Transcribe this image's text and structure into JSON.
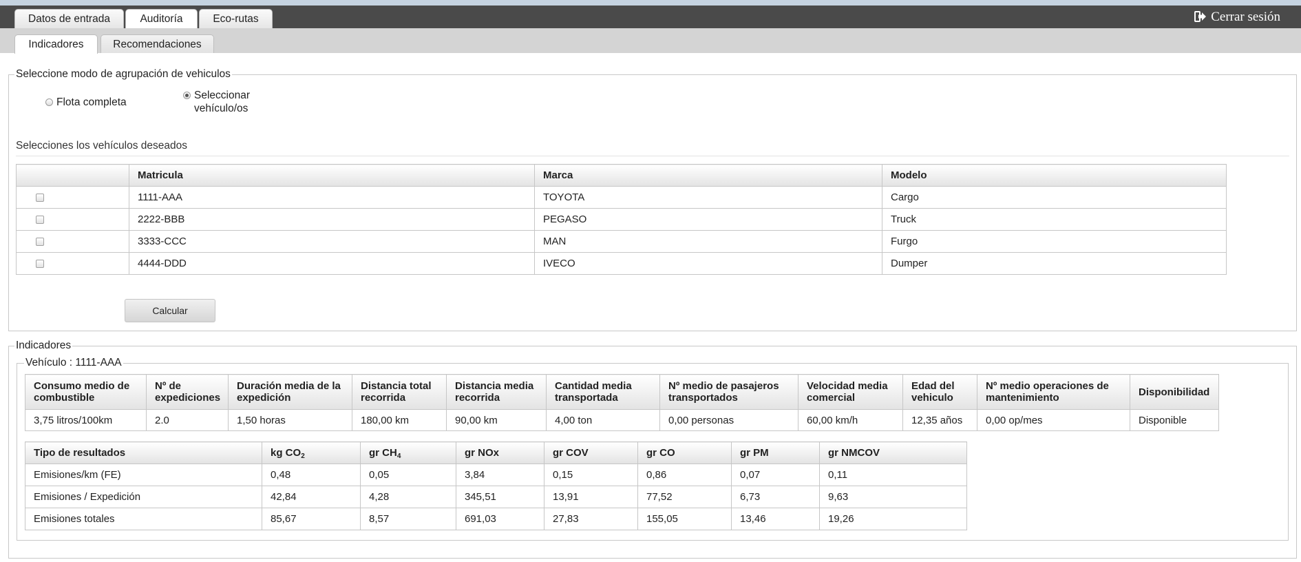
{
  "main_tabs": [
    {
      "label": "Datos de entrada",
      "active": false
    },
    {
      "label": "Auditoría",
      "active": true
    },
    {
      "label": "Eco-rutas",
      "active": false
    }
  ],
  "sub_tabs": [
    {
      "label": "Indicadores",
      "active": true
    },
    {
      "label": "Recomendaciones",
      "active": false
    }
  ],
  "logout_label": "Cerrar sesión",
  "grouping": {
    "legend": "Seleccione modo de agrupación de vehiculos",
    "option_full": "Flota completa",
    "option_select_line1": "Seleccionar",
    "option_select_line2": "vehículo/os",
    "selected": "select"
  },
  "vehicles": {
    "title": "Selecciones los vehículos deseados",
    "headers": [
      "",
      "Matricula",
      "Marca",
      "Modelo"
    ],
    "rows": [
      {
        "plate": "1111-AAA",
        "brand": "TOYOTA",
        "model": "Cargo"
      },
      {
        "plate": "2222-BBB",
        "brand": "PEGASO",
        "model": "Truck"
      },
      {
        "plate": "3333-CCC",
        "brand": "MAN",
        "model": "Furgo"
      },
      {
        "plate": "4444-DDD",
        "brand": "IVECO",
        "model": "Dumper"
      }
    ],
    "calc_button": "Calcular"
  },
  "indicators": {
    "legend": "Indicadores",
    "vehicle_legend": "Vehículo : 1111-AAA",
    "headers": [
      "Consumo medio de combustible",
      "Nº de expediciones",
      "Duración media de la expedición",
      "Distancia total recorrida",
      "Distancia media recorrida",
      "Cantidad media transportada",
      "Nº medio de pasajeros transportados",
      "Velocidad media comercial",
      "Edad del vehiculo",
      "Nº medio operaciones de mantenimiento",
      "Disponibilidad"
    ],
    "values": [
      "3,75 litros/100km",
      "2.0",
      "1,50 horas",
      "180,00 km",
      "90,00 km",
      "4,00 ton",
      "0,00 personas",
      "60,00 km/h",
      "12,35 años",
      "0,00 op/mes",
      "Disponible"
    ]
  },
  "emissions": {
    "headers": [
      {
        "main": "Tipo de resultados",
        "sub": "",
        "tail": ""
      },
      {
        "main": "kg CO",
        "sub": "2",
        "tail": ""
      },
      {
        "main": "gr CH",
        "sub": "4",
        "tail": ""
      },
      {
        "main": "gr NOx",
        "sub": "",
        "tail": ""
      },
      {
        "main": "gr COV",
        "sub": "",
        "tail": ""
      },
      {
        "main": "gr CO",
        "sub": "",
        "tail": ""
      },
      {
        "main": "gr PM",
        "sub": "",
        "tail": ""
      },
      {
        "main": "gr NMCOV",
        "sub": "",
        "tail": ""
      }
    ],
    "rows": [
      [
        "Emisiones/km (FE)",
        "0,48",
        "0,05",
        "3,84",
        "0,15",
        "0,86",
        "0,07",
        "0,11"
      ],
      [
        "Emisiones / Expedición",
        "42,84",
        "4,28",
        "345,51",
        "13,91",
        "77,52",
        "6,73",
        "9,63"
      ],
      [
        "Emisiones totales",
        "85,67",
        "8,57",
        "691,03",
        "27,83",
        "155,05",
        "13,46",
        "19,26"
      ]
    ]
  }
}
